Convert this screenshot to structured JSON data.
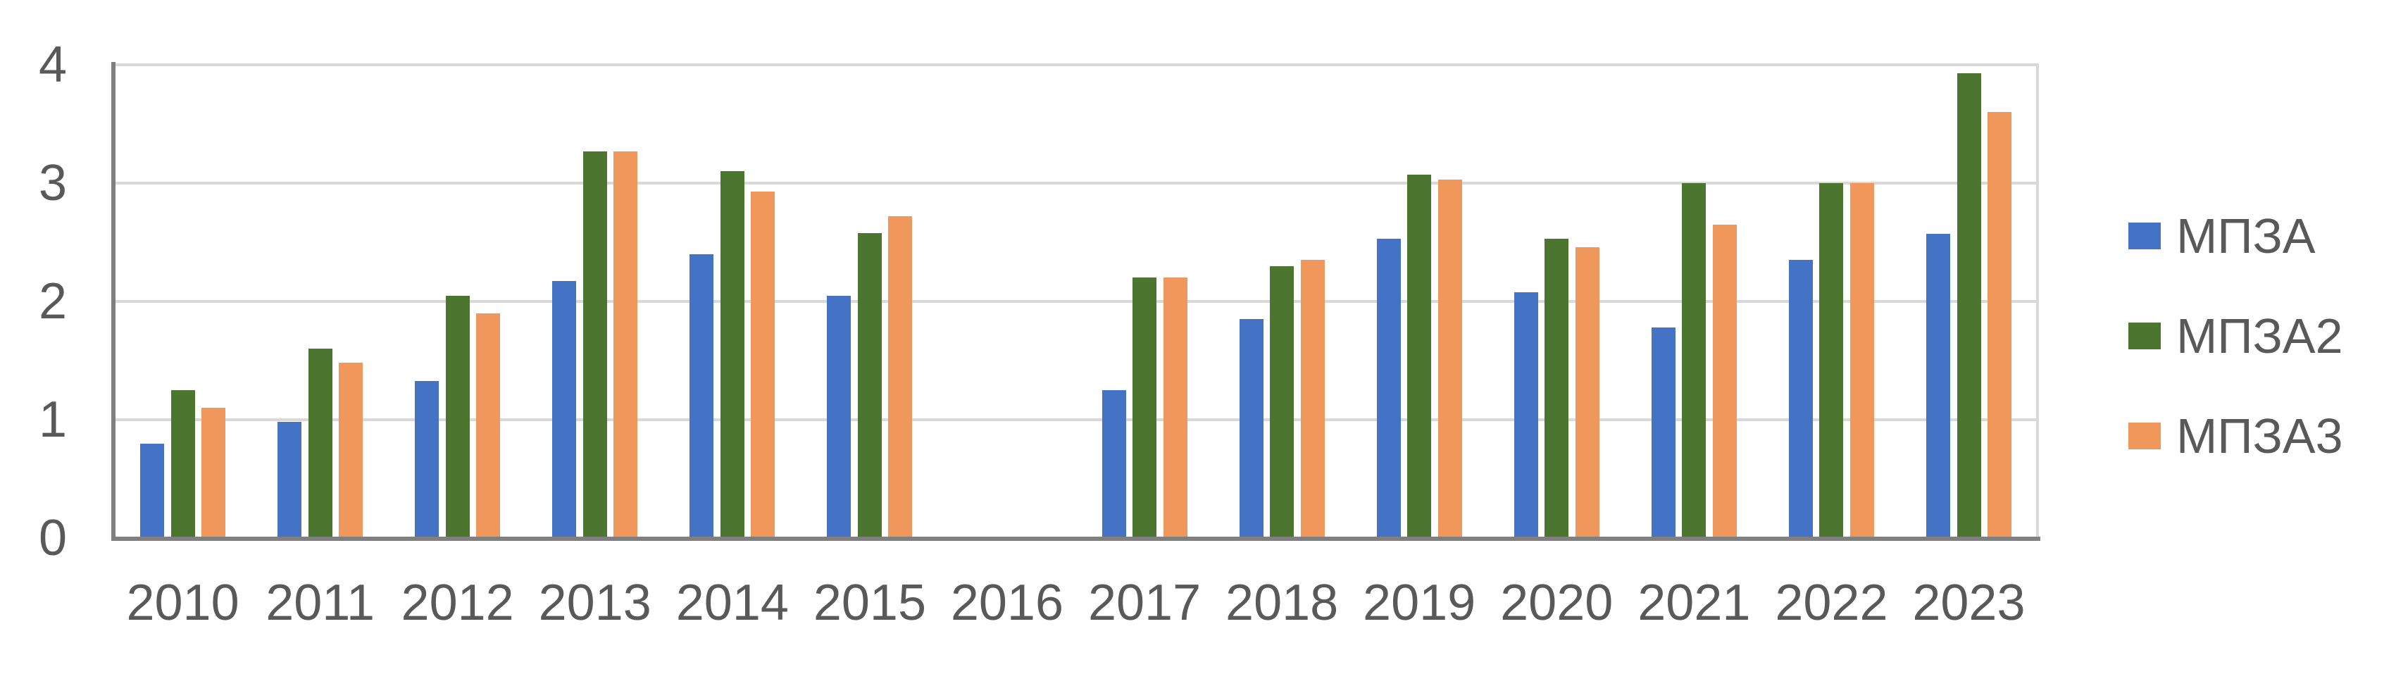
{
  "chart_data": {
    "type": "bar",
    "title": "",
    "xlabel": "",
    "ylabel": "",
    "categories": [
      "2010",
      "2011",
      "2012",
      "2013",
      "2014",
      "2015",
      "2016",
      "2017",
      "2018",
      "2019",
      "2020",
      "2021",
      "2022",
      "2023"
    ],
    "series": [
      {
        "name": "МПЗА",
        "color": "#4472C4",
        "values": [
          0.8,
          0.98,
          1.33,
          2.17,
          2.4,
          2.05,
          0,
          1.25,
          1.85,
          2.53,
          2.08,
          1.78,
          2.35,
          2.57
        ]
      },
      {
        "name": "МПЗА2",
        "color": "#4C762F",
        "values": [
          1.25,
          1.6,
          2.05,
          3.27,
          3.1,
          2.58,
          0,
          2.2,
          2.3,
          3.07,
          2.53,
          3.0,
          3.0,
          3.93
        ]
      },
      {
        "name": "МПЗА3",
        "color": "#F0985B",
        "values": [
          1.1,
          1.48,
          1.9,
          3.27,
          2.93,
          2.72,
          0,
          2.2,
          2.35,
          3.03,
          2.46,
          2.65,
          3.0,
          3.6
        ]
      }
    ],
    "ylim": [
      0,
      4
    ],
    "yticks": [
      0,
      1,
      2,
      3,
      4
    ],
    "grid": true,
    "legend_position": "right",
    "colors": {
      "grid_color": "#D9D9D9",
      "axis_color": "#808080",
      "label_color": "#595959",
      "background": "#FFFFFF"
    }
  }
}
